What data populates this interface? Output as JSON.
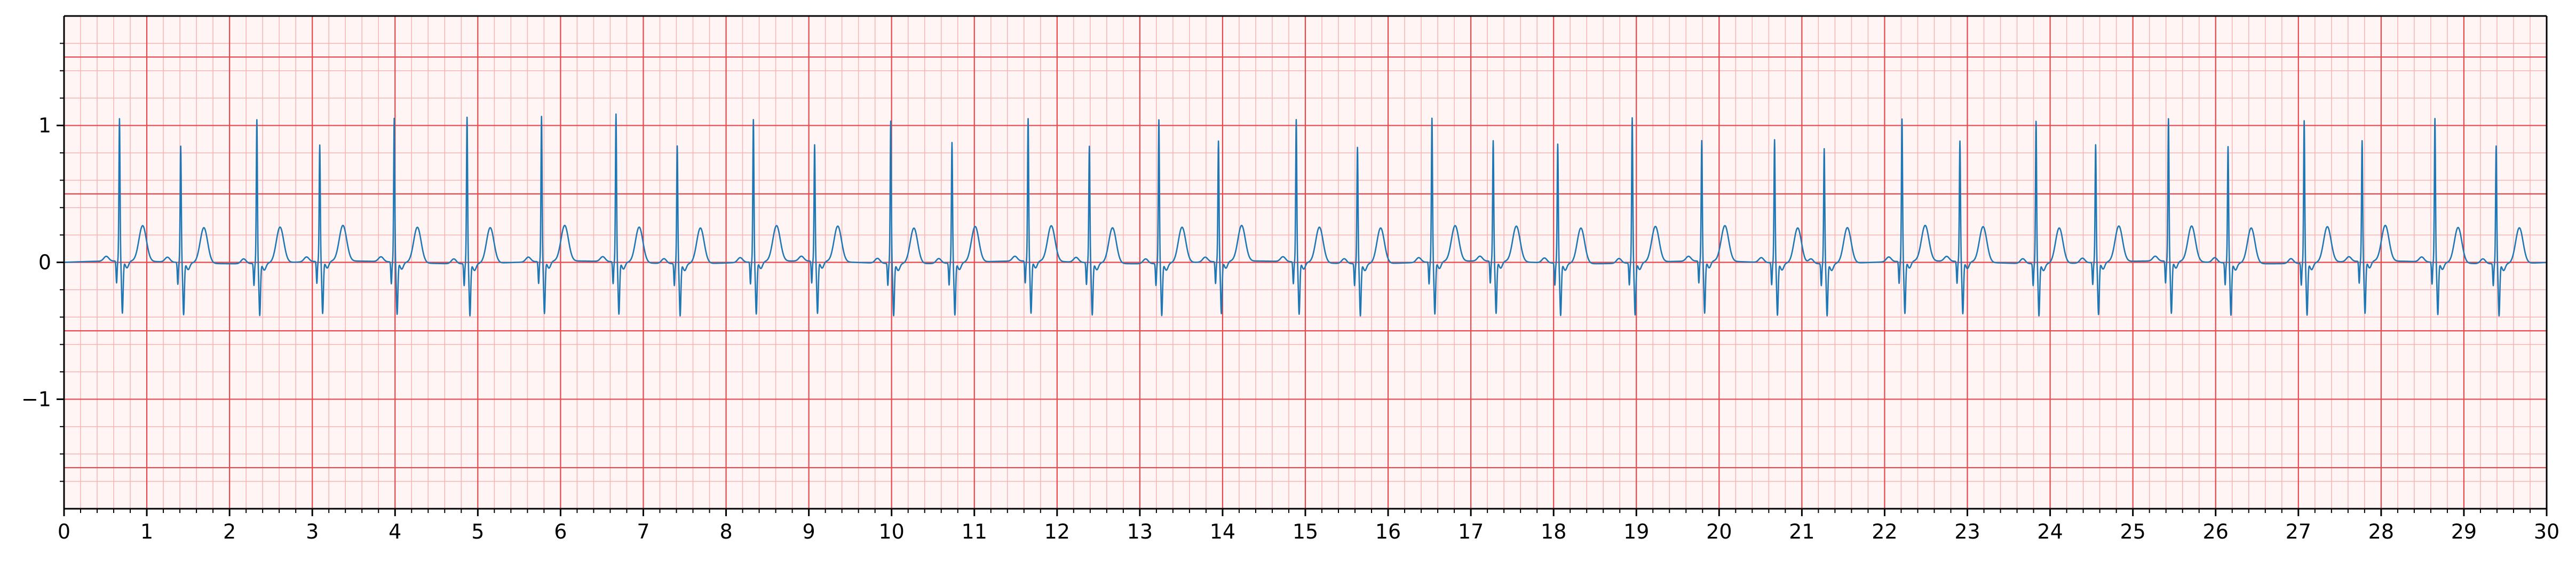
{
  "chart_data": {
    "type": "line",
    "title": "",
    "xlabel": "",
    "ylabel": "",
    "xlim": [
      0,
      30
    ],
    "ylim": [
      -1.8,
      1.8
    ],
    "x_ticks": [
      "0",
      "1",
      "2",
      "3",
      "4",
      "5",
      "6",
      "7",
      "8",
      "9",
      "10",
      "11",
      "12",
      "13",
      "14",
      "15",
      "16",
      "17",
      "18",
      "19",
      "20",
      "21",
      "22",
      "23",
      "24",
      "25",
      "26",
      "27",
      "28",
      "29",
      "30"
    ],
    "y_ticks": [
      {
        "value": -1,
        "label": "−1"
      },
      {
        "value": 0,
        "label": "0"
      },
      {
        "value": 1,
        "label": "1"
      }
    ],
    "grid": {
      "major_x": 1,
      "major_y": 0.5,
      "minor": 0.2,
      "major_color": "#e8474c",
      "minor_color": "#f6b3b3",
      "background": "#fff5f5"
    },
    "line_color": "#1f77b4",
    "series": [
      {
        "name": "",
        "sample_rate_hz": 100,
        "beat_shape": "paced",
        "beats": [
          {
            "t": 0.67,
            "spike": 1.04
          },
          {
            "t": 1.41,
            "spike": 0.85
          },
          {
            "t": 2.33,
            "spike": 1.05
          },
          {
            "t": 3.09,
            "spike": 0.85
          },
          {
            "t": 3.99,
            "spike": 1.05
          },
          {
            "t": 4.87,
            "spike": 1.07
          },
          {
            "t": 5.77,
            "spike": 1.06
          },
          {
            "t": 6.67,
            "spike": 1.08
          },
          {
            "t": 7.41,
            "spike": 0.86
          },
          {
            "t": 8.33,
            "spike": 1.04
          },
          {
            "t": 9.07,
            "spike": 0.85
          },
          {
            "t": 9.99,
            "spike": 1.04
          },
          {
            "t": 10.73,
            "spike": 0.88
          },
          {
            "t": 11.65,
            "spike": 1.04
          },
          {
            "t": 12.39,
            "spike": 0.85
          },
          {
            "t": 13.23,
            "spike": 1.05
          },
          {
            "t": 13.95,
            "spike": 0.88
          },
          {
            "t": 14.89,
            "spike": 1.04
          },
          {
            "t": 15.63,
            "spike": 0.85
          },
          {
            "t": 16.53,
            "spike": 1.05
          },
          {
            "t": 17.27,
            "spike": 0.88
          },
          {
            "t": 18.05,
            "spike": 0.87
          },
          {
            "t": 18.95,
            "spike": 1.06
          },
          {
            "t": 19.79,
            "spike": 0.88
          },
          {
            "t": 20.67,
            "spike": 0.9
          },
          {
            "t": 21.27,
            "spike": 0.84
          },
          {
            "t": 22.21,
            "spike": 1.04
          },
          {
            "t": 22.91,
            "spike": 0.88
          },
          {
            "t": 23.83,
            "spike": 1.04
          },
          {
            "t": 24.55,
            "spike": 0.86
          },
          {
            "t": 25.43,
            "spike": 1.04
          },
          {
            "t": 26.15,
            "spike": 0.85
          },
          {
            "t": 27.07,
            "spike": 1.04
          },
          {
            "t": 27.77,
            "spike": 0.88
          },
          {
            "t": 28.65,
            "spike": 1.05
          },
          {
            "t": 29.39,
            "spike": 0.86
          }
        ]
      }
    ]
  }
}
